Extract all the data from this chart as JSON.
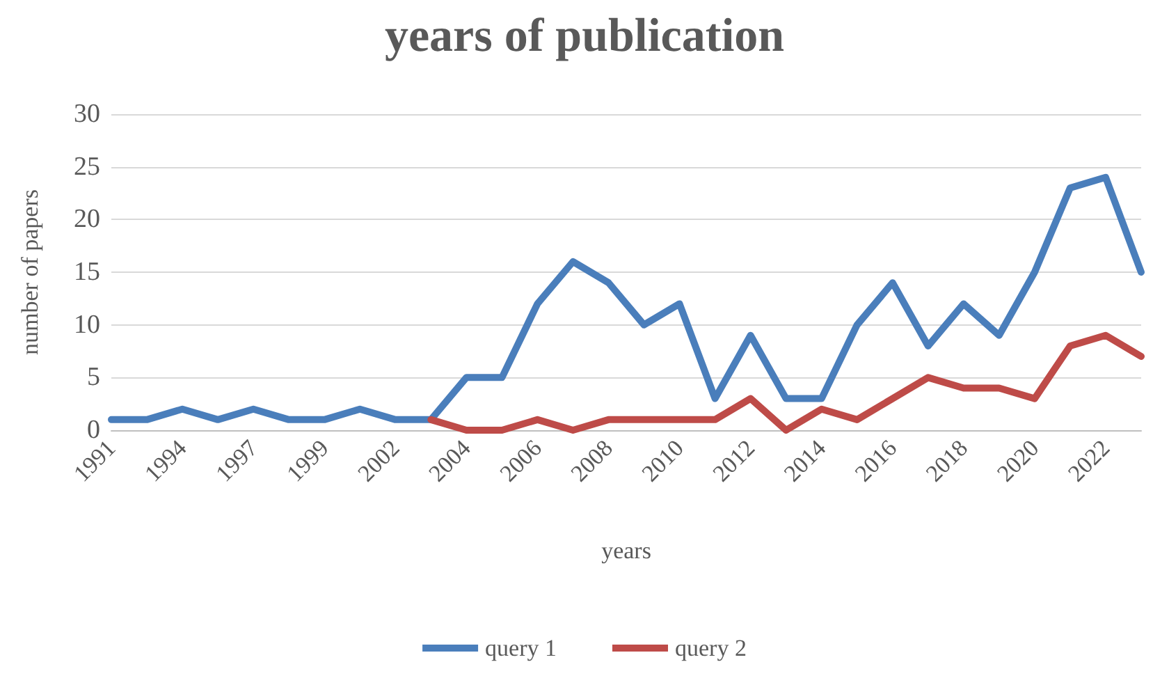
{
  "chart_data": {
    "type": "line",
    "title": "years of publication",
    "xlabel": "years",
    "ylabel": "number of papers",
    "categories": [
      "1991",
      null,
      "1994",
      null,
      "1997",
      null,
      "1999",
      null,
      "2002",
      null,
      "2004",
      null,
      "2006",
      null,
      "2008",
      null,
      "2010",
      null,
      "2012",
      null,
      "2014",
      null,
      "2016",
      null,
      "2018",
      null,
      "2020",
      null,
      "2022",
      null
    ],
    "series": [
      {
        "name": "query 1",
        "color": "#4a7ebb",
        "values": [
          1,
          1,
          2,
          1,
          2,
          1,
          1,
          2,
          1,
          1,
          5,
          5,
          12,
          16,
          14,
          10,
          12,
          3,
          9,
          3,
          3,
          10,
          14,
          8,
          12,
          9,
          15,
          23,
          24,
          15
        ]
      },
      {
        "name": "query 2",
        "color": "#be4b48",
        "values": [
          null,
          null,
          null,
          null,
          null,
          null,
          null,
          null,
          null,
          1,
          0,
          0,
          1,
          0,
          1,
          1,
          1,
          1,
          3,
          0,
          2,
          1,
          3,
          5,
          4,
          4,
          3,
          8,
          9,
          7
        ]
      }
    ],
    "ylim": [
      0,
      30
    ],
    "yticks": [
      0,
      5,
      10,
      15,
      20,
      25,
      30
    ],
    "grid": "y",
    "legend": "bottom",
    "marker": "none",
    "line_style": "solid"
  }
}
